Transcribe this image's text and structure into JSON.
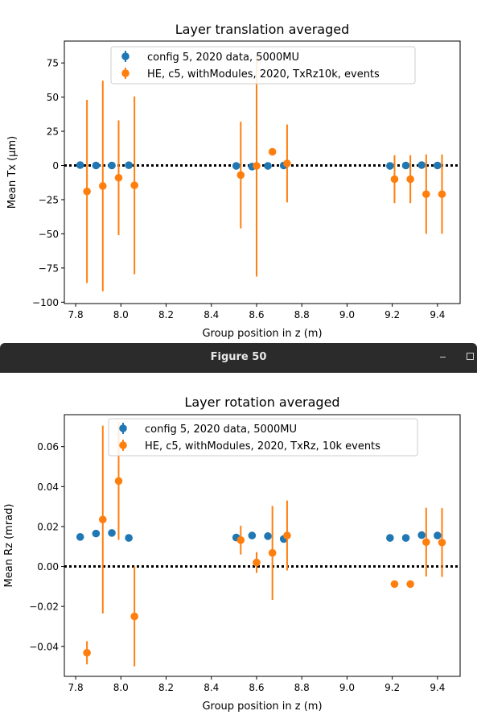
{
  "window": {
    "title": "Figure 50",
    "buttons": [
      "minimize-icon",
      "maximize-icon"
    ]
  },
  "colors": {
    "blue": "#1f77b4",
    "orange": "#ff7f0e",
    "window_bar": "#2b2b2b"
  },
  "chart_data": [
    {
      "type": "scatter",
      "title": "Layer translation averaged",
      "xlabel": "Group position in z (m)",
      "ylabel": "Mean Tx (μm)",
      "xlim": [
        7.75,
        9.5
      ],
      "ylim": [
        -101,
        91
      ],
      "xticks": [
        7.8,
        8.0,
        8.2,
        8.4,
        8.6,
        8.8,
        9.0,
        9.2,
        9.4
      ],
      "xtick_labels": [
        "7.8",
        "8.0",
        "8.2",
        "8.4",
        "8.6",
        "8.8",
        "9.0",
        "9.2",
        "9.4"
      ],
      "yticks": [
        75,
        50,
        25,
        0,
        -25,
        -50,
        -75,
        -100
      ],
      "ytick_labels": [
        "75",
        "50",
        "25",
        "0",
        "−25",
        "−50",
        "−75",
        "−100"
      ],
      "grid": false,
      "legend_position": "top-center",
      "reference_line": 0,
      "series": [
        {
          "name": "config 5, 2020 data, 5000MU",
          "color": "#1f77b4",
          "x": [
            7.82,
            7.89,
            7.96,
            8.035,
            8.51,
            8.58,
            8.65,
            8.72,
            9.19,
            9.26,
            9.33,
            9.4
          ],
          "y": [
            0.3,
            0,
            0,
            0.2,
            -0.3,
            -0.8,
            -0.3,
            0,
            -0.3,
            0,
            0.3,
            0
          ],
          "yerr": [
            0.6,
            0.6,
            0.6,
            0.6,
            0.6,
            0.6,
            0.6,
            0.6,
            0.6,
            0.6,
            0.6,
            0.6
          ]
        },
        {
          "name": "HE, c5, withModules, 2020, TxRz10k, events",
          "color": "#ff7f0e",
          "x": [
            7.85,
            7.92,
            7.99,
            8.06,
            8.53,
            8.6,
            8.67,
            8.735,
            9.21,
            9.28,
            9.35,
            9.42
          ],
          "y": [
            -19,
            -15,
            -9,
            -14.5,
            -7,
            -0.3,
            10,
            1.5,
            -10,
            -10,
            -21,
            -21
          ],
          "yerr": [
            67,
            77,
            42,
            65,
            39,
            81,
            0,
            28.5,
            17.5,
            17.5,
            29,
            29
          ]
        }
      ]
    },
    {
      "type": "scatter",
      "title": "Layer rotation averaged",
      "xlabel": "Group position in z (m)",
      "ylabel": "Mean Rz (mrad)",
      "xlim": [
        7.75,
        9.5
      ],
      "ylim": [
        -0.055,
        0.076
      ],
      "xticks": [
        7.8,
        8.0,
        8.2,
        8.4,
        8.6,
        8.8,
        9.0,
        9.2,
        9.4
      ],
      "xtick_labels": [
        "7.8",
        "8.0",
        "8.2",
        "8.4",
        "8.6",
        "8.8",
        "9.0",
        "9.2",
        "9.4"
      ],
      "yticks": [
        0.06,
        0.04,
        0.02,
        0.0,
        -0.02,
        -0.04
      ],
      "ytick_labels": [
        "0.06",
        "0.04",
        "0.02",
        "0.00",
        "−0.02",
        "−0.04"
      ],
      "grid": false,
      "legend_position": "top-center",
      "reference_line": 0,
      "series": [
        {
          "name": "config 5, 2020 data, 5000MU",
          "color": "#1f77b4",
          "x": [
            7.82,
            7.89,
            7.96,
            8.035,
            8.51,
            8.58,
            8.65,
            8.72,
            9.19,
            9.26,
            9.33,
            9.4
          ],
          "y": [
            0.0148,
            0.0165,
            0.0168,
            0.0143,
            0.0145,
            0.0155,
            0.0152,
            0.0138,
            0.0143,
            0.0143,
            0.0157,
            0.0155
          ],
          "yerr": [
            0.0003,
            0.0003,
            0.0003,
            0.0003,
            0.0003,
            0.0003,
            0.0003,
            0.0003,
            0.0003,
            0.0003,
            0.0003,
            0.0003
          ]
        },
        {
          "name": "HE, c5, withModules, 2020, TxRz, 10k events",
          "color": "#ff7f0e",
          "x": [
            7.85,
            7.92,
            7.99,
            8.06,
            8.53,
            8.6,
            8.67,
            8.735,
            9.21,
            9.28,
            9.35,
            9.42
          ],
          "y": [
            -0.0432,
            0.0235,
            0.0428,
            -0.025,
            0.0132,
            0.002,
            0.0068,
            0.0155,
            -0.0088,
            -0.0088,
            0.0122,
            0.012
          ],
          "yerr": [
            0.0058,
            0.047,
            0.0295,
            0.025,
            0.0072,
            0.0052,
            0.0235,
            0.0175,
            0,
            0,
            0.0172,
            0.0172
          ]
        }
      ]
    }
  ]
}
